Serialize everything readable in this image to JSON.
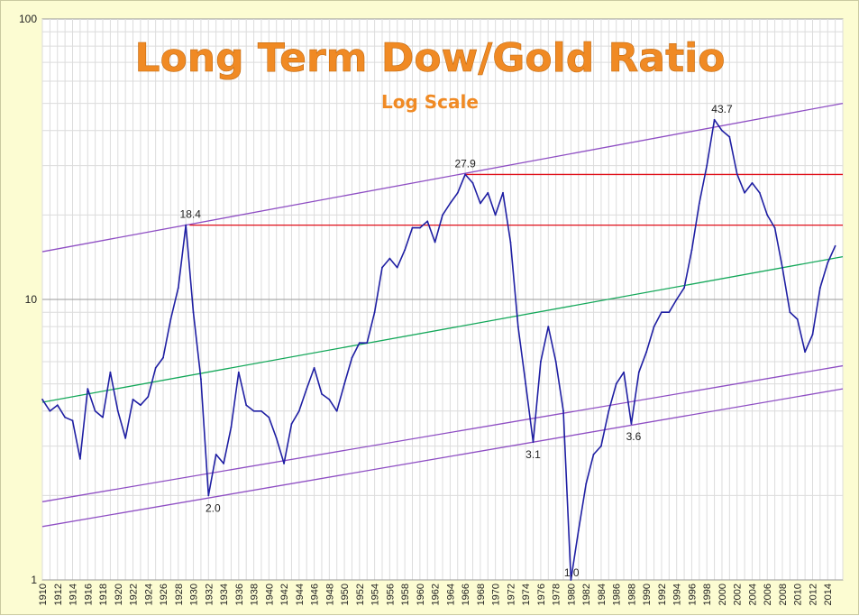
{
  "chart_data": {
    "type": "line",
    "title": "Long Term Dow/Gold Ratio",
    "subtitle": "Log Scale",
    "xlabel": "",
    "ylabel": "",
    "yscale": "log",
    "ylim": [
      1,
      100
    ],
    "xlim": [
      1910,
      2016
    ],
    "y_ticks": [
      "1",
      "10",
      "100"
    ],
    "x_ticks": [
      "1910",
      "1912",
      "1914",
      "1916",
      "1918",
      "1920",
      "1922",
      "1924",
      "1926",
      "1928",
      "1930",
      "1932",
      "1934",
      "1936",
      "1938",
      "1940",
      "1942",
      "1944",
      "1946",
      "1948",
      "1950",
      "1952",
      "1954",
      "1956",
      "1958",
      "1960",
      "1962",
      "1964",
      "1966",
      "1968",
      "1970",
      "1972",
      "1974",
      "1976",
      "1978",
      "1980",
      "1982",
      "1984",
      "1986",
      "1988",
      "1990",
      "1992",
      "1994",
      "1996",
      "1998",
      "2000",
      "2002",
      "2004",
      "2006",
      "2008",
      "2010",
      "2012",
      "2014"
    ],
    "grid": true,
    "colors": {
      "series": "#1f1fa3",
      "channel": "#8f4fc4",
      "resistance": "#e0101a",
      "trend": "#14a85a",
      "title": "#f08a24",
      "background": "#fcfcd2",
      "plot": "#ffffff"
    },
    "series": [
      {
        "values": [
          [
            1910,
            4.4
          ],
          [
            1911,
            4.0
          ],
          [
            1912,
            4.2
          ],
          [
            1913,
            3.8
          ],
          [
            1914,
            3.7
          ],
          [
            1915,
            2.7
          ],
          [
            1916,
            4.8
          ],
          [
            1917,
            4.0
          ],
          [
            1918,
            3.8
          ],
          [
            1919,
            5.5
          ],
          [
            1920,
            4.0
          ],
          [
            1921,
            3.2
          ],
          [
            1922,
            4.4
          ],
          [
            1923,
            4.2
          ],
          [
            1924,
            4.5
          ],
          [
            1925,
            5.7
          ],
          [
            1926,
            6.2
          ],
          [
            1927,
            8.5
          ],
          [
            1928,
            11.0
          ],
          [
            1929,
            18.4
          ],
          [
            1930,
            9.0
          ],
          [
            1931,
            5.2
          ],
          [
            1932,
            2.0
          ],
          [
            1933,
            2.8
          ],
          [
            1934,
            2.6
          ],
          [
            1935,
            3.5
          ],
          [
            1936,
            5.5
          ],
          [
            1937,
            4.2
          ],
          [
            1938,
            4.0
          ],
          [
            1939,
            4.0
          ],
          [
            1940,
            3.8
          ],
          [
            1941,
            3.2
          ],
          [
            1942,
            2.6
          ],
          [
            1943,
            3.6
          ],
          [
            1944,
            4.0
          ],
          [
            1945,
            4.8
          ],
          [
            1946,
            5.7
          ],
          [
            1947,
            4.6
          ],
          [
            1948,
            4.4
          ],
          [
            1949,
            4.0
          ],
          [
            1950,
            5.0
          ],
          [
            1951,
            6.2
          ],
          [
            1952,
            7.0
          ],
          [
            1953,
            7.0
          ],
          [
            1954,
            9.0
          ],
          [
            1955,
            13.0
          ],
          [
            1956,
            14.0
          ],
          [
            1957,
            13.0
          ],
          [
            1958,
            15.0
          ],
          [
            1959,
            18.0
          ],
          [
            1960,
            18.0
          ],
          [
            1961,
            19.0
          ],
          [
            1962,
            16.0
          ],
          [
            1963,
            20.0
          ],
          [
            1964,
            22.0
          ],
          [
            1965,
            24.0
          ],
          [
            1966,
            27.9
          ],
          [
            1967,
            26.0
          ],
          [
            1968,
            22.0
          ],
          [
            1969,
            24.0
          ],
          [
            1970,
            20.0
          ],
          [
            1971,
            24.0
          ],
          [
            1972,
            16.0
          ],
          [
            1973,
            8.0
          ],
          [
            1974,
            5.0
          ],
          [
            1975,
            3.1
          ],
          [
            1976,
            6.0
          ],
          [
            1977,
            8.0
          ],
          [
            1978,
            6.0
          ],
          [
            1979,
            4.0
          ],
          [
            1980,
            1.0
          ],
          [
            1981,
            1.5
          ],
          [
            1982,
            2.2
          ],
          [
            1983,
            2.8
          ],
          [
            1984,
            3.0
          ],
          [
            1985,
            4.0
          ],
          [
            1986,
            5.0
          ],
          [
            1987,
            5.5
          ],
          [
            1988,
            3.6
          ],
          [
            1989,
            5.5
          ],
          [
            1990,
            6.5
          ],
          [
            1991,
            8.0
          ],
          [
            1992,
            9.0
          ],
          [
            1993,
            9.0
          ],
          [
            1994,
            10.0
          ],
          [
            1995,
            11.0
          ],
          [
            1996,
            15.0
          ],
          [
            1997,
            22.0
          ],
          [
            1998,
            30.0
          ],
          [
            1999,
            43.7
          ],
          [
            2000,
            40.0
          ],
          [
            2001,
            38.0
          ],
          [
            2002,
            28.0
          ],
          [
            2003,
            24.0
          ],
          [
            2004,
            26.0
          ],
          [
            2005,
            24.0
          ],
          [
            2006,
            20.0
          ],
          [
            2007,
            18.0
          ],
          [
            2008,
            13.0
          ],
          [
            2009,
            9.0
          ],
          [
            2010,
            8.5
          ],
          [
            2011,
            6.5
          ],
          [
            2012,
            7.5
          ],
          [
            2013,
            11.0
          ],
          [
            2014,
            13.5
          ],
          [
            2015,
            15.5
          ]
        ]
      }
    ],
    "annotations": [
      {
        "text": "18.4",
        "x": 1929.6,
        "y": 18.4
      },
      {
        "text": "2.0",
        "x": 1932.6,
        "y": 2.0
      },
      {
        "text": "27.9",
        "x": 1966.0,
        "y": 27.9
      },
      {
        "text": "3.1",
        "x": 1975.0,
        "y": 3.1
      },
      {
        "text": "1.0",
        "x": 1980.1,
        "y": 1.0
      },
      {
        "text": "3.6",
        "x": 1988.3,
        "y": 3.6
      },
      {
        "text": "43.7",
        "x": 2000.0,
        "y": 43.7
      }
    ],
    "reference_lines": [
      {
        "type": "channel",
        "x1": 1910,
        "y1": 14.8,
        "x2": 2016,
        "y2": 50
      },
      {
        "type": "channel",
        "x1": 1910,
        "y1": 1.9,
        "x2": 2016,
        "y2": 5.8
      },
      {
        "type": "channel",
        "x1": 1910,
        "y1": 1.55,
        "x2": 2016,
        "y2": 4.8
      },
      {
        "type": "trend",
        "x1": 1910,
        "y1": 4.3,
        "x2": 2016,
        "y2": 14.2
      },
      {
        "type": "resistance",
        "x1": 1929.5,
        "y1": 18.4,
        "x2": 2016,
        "y2": 18.4
      },
      {
        "type": "resistance",
        "x1": 1966.0,
        "y1": 27.9,
        "x2": 2016,
        "y2": 27.9
      }
    ]
  }
}
